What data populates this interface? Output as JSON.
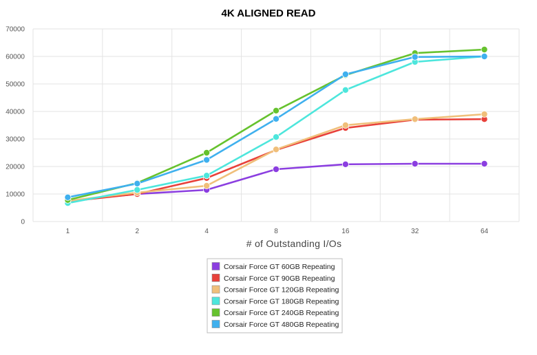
{
  "chart_data": {
    "type": "line",
    "title": "4K ALIGNED READ",
    "xlabel": "# of Outstanding I/Os",
    "ylabel": "",
    "x": [
      "1",
      "2",
      "4",
      "8",
      "16",
      "32",
      "64"
    ],
    "ylim": [
      0,
      70000
    ],
    "yticks": [
      "0",
      "10000",
      "20000",
      "30000",
      "40000",
      "50000",
      "60000",
      "70000"
    ],
    "grid": true,
    "legend_position": "bottom",
    "series": [
      {
        "name": "Corsair Force GT 60GB Repeating",
        "color": "#8b3ee0",
        "values": [
          7500,
          10000,
          11500,
          19000,
          20800,
          21000,
          21000
        ]
      },
      {
        "name": "Corsair Force GT 90GB Repeating",
        "color": "#e8413a",
        "values": [
          7300,
          10000,
          15800,
          26000,
          34000,
          37000,
          37200
        ]
      },
      {
        "name": "Corsair Force GT 120GB Repeating",
        "color": "#f0bf7a",
        "values": [
          7500,
          10500,
          13000,
          26200,
          35000,
          37200,
          39000
        ]
      },
      {
        "name": "Corsair Force GT 180GB Repeating",
        "color": "#4de6dc",
        "values": [
          6700,
          11500,
          16700,
          30700,
          47800,
          58000,
          60000
        ]
      },
      {
        "name": "Corsair Force GT 240GB Repeating",
        "color": "#66c22e",
        "values": [
          7800,
          14000,
          25000,
          40300,
          53200,
          61200,
          62500
        ]
      },
      {
        "name": "Corsair Force GT 480GB Repeating",
        "color": "#3fb0ee",
        "values": [
          8800,
          13800,
          22400,
          37300,
          53500,
          59800,
          60000
        ]
      }
    ]
  }
}
